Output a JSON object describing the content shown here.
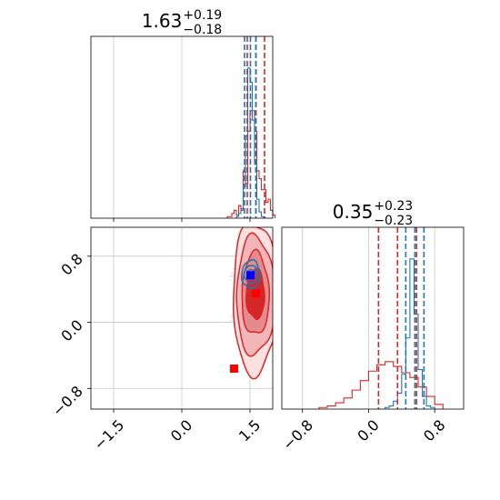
{
  "chart_data": {
    "type": "corner",
    "colors": {
      "red": "#d62728",
      "blue": "#1f77b4",
      "marker_red": "#ff0000",
      "marker_blue": "#0000ff",
      "grid": "#c8c8c8"
    },
    "grid": true,
    "panels": [
      {
        "id": "p1-hist",
        "type": "histogram",
        "title": {
          "main": "1.63",
          "sup": "+0.19",
          "sub": "−0.18"
        },
        "xlim": [
          -2.0,
          2.0
        ],
        "ylim": [
          0,
          1.15
        ],
        "xticks": [
          -1.5,
          0.0,
          1.5
        ],
        "show_xticklabels": false,
        "series": [
          {
            "color": "#d62728",
            "bins": [
              1.0,
              1.05,
              1.1,
              1.15,
              1.2,
              1.25,
              1.3,
              1.35,
              1.4,
              1.45,
              1.5,
              1.55,
              1.6,
              1.65,
              1.7,
              1.75,
              1.8,
              1.85,
              1.9,
              1.95,
              2.0,
              2.05
            ],
            "counts": [
              0.01,
              0.01,
              0.03,
              0.05,
              0.02,
              0.08,
              0.05,
              0.3,
              0.22,
              0.55,
              0.68,
              0.68,
              0.55,
              0.3,
              0.25,
              0.18,
              0.18,
              0.1,
              0.12,
              0.05,
              0.02
            ]
          },
          {
            "color": "#1f77b4",
            "bins": [
              1.2,
              1.25,
              1.3,
              1.35,
              1.4,
              1.45,
              1.5,
              1.55,
              1.6,
              1.65,
              1.7,
              1.75,
              1.8,
              1.85
            ],
            "counts": [
              0.01,
              0.03,
              0.06,
              0.2,
              0.52,
              0.95,
              0.86,
              0.62,
              0.34,
              0.12,
              0.04,
              0.01,
              0.0
            ]
          }
        ],
        "quantile_lines": [
          {
            "color": "#d62728",
            "values": [
              1.44,
              1.63,
              1.82
            ]
          },
          {
            "color": "#1f77b4",
            "values": [
              1.38,
              1.51,
              1.63
            ]
          }
        ]
      },
      {
        "id": "p2-scatter",
        "type": "contour",
        "xlim": [
          -2.0,
          2.0
        ],
        "ylim": [
          -1.05,
          1.15
        ],
        "xticks": [
          -1.5,
          0.0,
          1.5
        ],
        "xticklabels": [
          "−1.5",
          "0.0",
          "1.5"
        ],
        "yticks": [
          -0.8,
          0.0,
          0.8
        ],
        "yticklabels": [
          "−0.8",
          "0.0",
          "0.8"
        ],
        "red_contours": [
          {
            "cx": 1.62,
            "cy": 0.3,
            "rx": 0.5,
            "ry": 0.92,
            "fill": "#ffe0e0"
          },
          {
            "cx": 1.62,
            "cy": 0.32,
            "rx": 0.42,
            "ry": 0.72,
            "fill": "#f3b6b8"
          },
          {
            "cx": 1.62,
            "cy": 0.34,
            "rx": 0.3,
            "ry": 0.5,
            "fill": "#e58a8d"
          },
          {
            "cx": 1.62,
            "cy": 0.34,
            "rx": 0.2,
            "ry": 0.3,
            "fill": "#d62728"
          }
        ],
        "blue_contours": [
          {
            "cx": 1.52,
            "cy": 0.58,
            "rx": 0.2,
            "ry": 0.17
          },
          {
            "cx": 1.52,
            "cy": 0.58,
            "rx": 0.14,
            "ry": 0.11
          },
          {
            "cx": 1.52,
            "cy": 0.58,
            "rx": 0.08,
            "ry": 0.06
          }
        ],
        "markers": [
          {
            "x": 1.63,
            "y": 0.35,
            "color": "#ff0000"
          },
          {
            "x": 1.15,
            "y": -0.56,
            "color": "#ff0000"
          },
          {
            "x": 1.51,
            "y": 0.57,
            "color": "#0000ff"
          }
        ]
      },
      {
        "id": "p3-hist",
        "type": "histogram",
        "title": {
          "main": "0.35",
          "sup": "+0.23",
          "sub": "−0.23"
        },
        "xlim": [
          -1.05,
          1.15
        ],
        "ylim": [
          0,
          1.15
        ],
        "xticks": [
          -0.8,
          0.0,
          0.8
        ],
        "xticklabels": [
          "−0.8",
          "0.0",
          "0.8"
        ],
        "series": [
          {
            "color": "#d62728",
            "bins": [
              -0.6,
              -0.5,
              -0.4,
              -0.3,
              -0.2,
              -0.1,
              0.0,
              0.1,
              0.2,
              0.3,
              0.4,
              0.5,
              0.6,
              0.7,
              0.8,
              0.9
            ],
            "counts": [
              0.01,
              0.02,
              0.04,
              0.07,
              0.12,
              0.18,
              0.24,
              0.28,
              0.3,
              0.27,
              0.23,
              0.2,
              0.14,
              0.08,
              0.03
            ]
          },
          {
            "color": "#1f77b4",
            "bins": [
              0.2,
              0.25,
              0.3,
              0.35,
              0.4,
              0.45,
              0.5,
              0.55,
              0.6,
              0.65,
              0.7,
              0.75,
              0.8
            ],
            "counts": [
              0.01,
              0.02,
              0.05,
              0.1,
              0.22,
              0.45,
              0.95,
              0.6,
              0.25,
              0.08,
              0.02,
              0.01
            ]
          }
        ],
        "quantile_lines": [
          {
            "color": "#d62728",
            "values": [
              0.12,
              0.35,
              0.58
            ]
          },
          {
            "color": "#1f77b4",
            "values": [
              0.45,
              0.56,
              0.67
            ]
          }
        ]
      }
    ]
  }
}
